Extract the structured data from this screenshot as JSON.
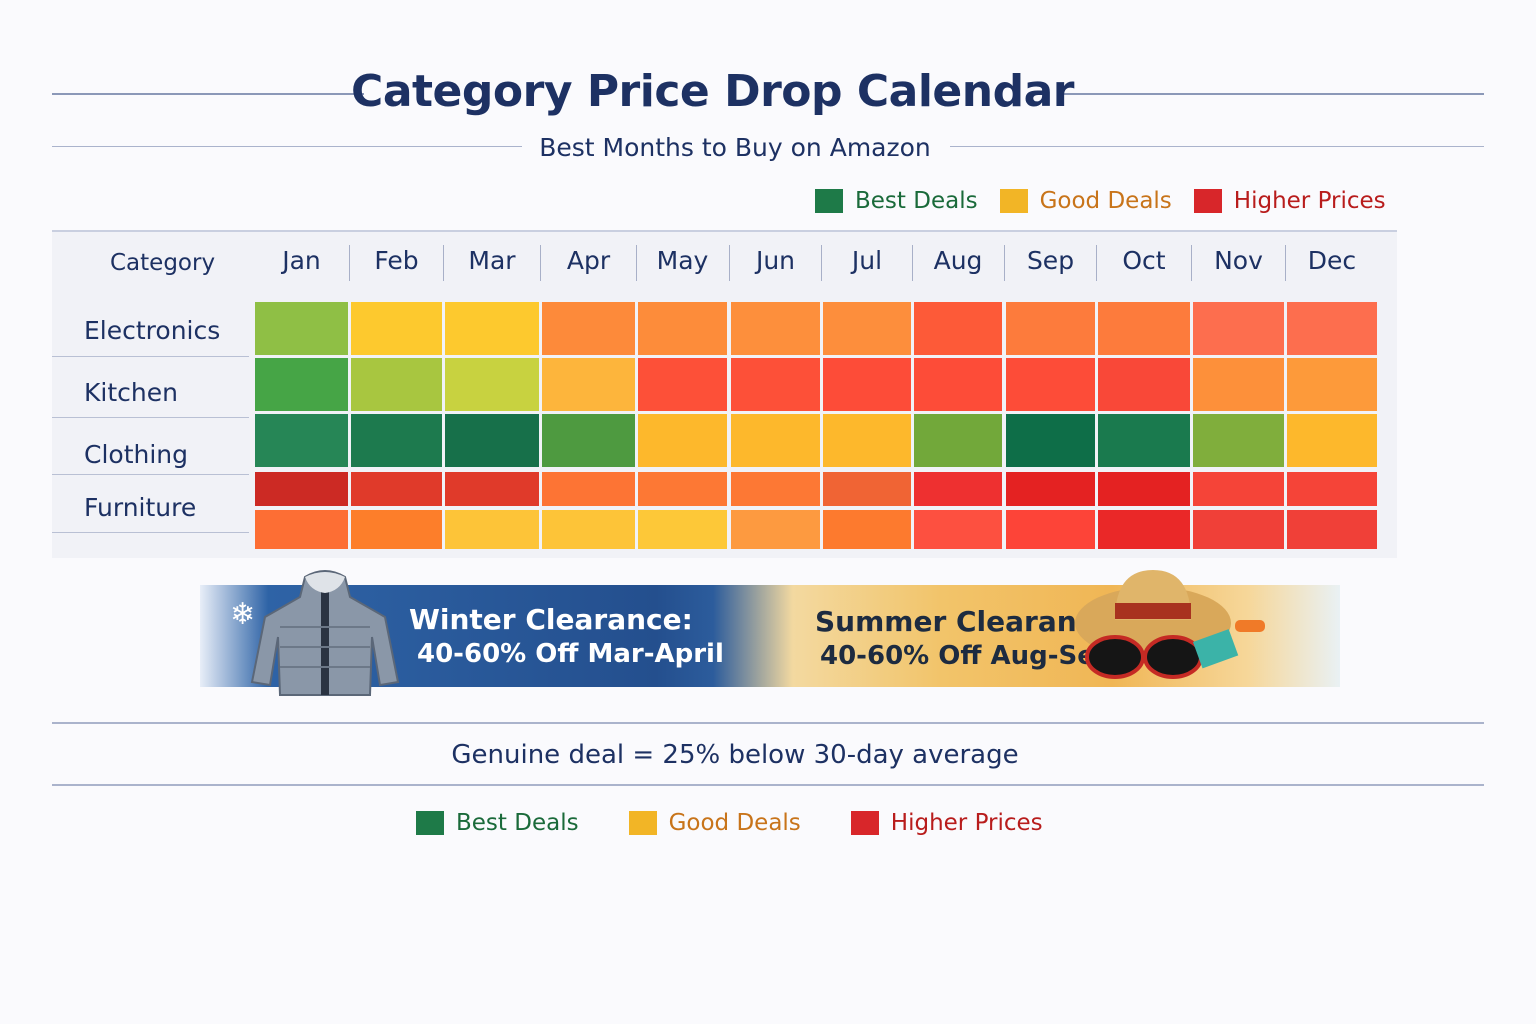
{
  "chart_data": {
    "type": "heatmap",
    "title": "Category Price Drop Calendar",
    "subtitle": "Best Months to Buy on Amazon",
    "row_header": "Category",
    "columns": [
      "Jan",
      "Feb",
      "Mar",
      "Apr",
      "May",
      "Jun",
      "Jul",
      "Aug",
      "Sep",
      "Oct",
      "Nov",
      "Dec"
    ],
    "rows": [
      "Electronics",
      "Kitchen",
      "Clothing",
      "Furniture",
      ""
    ],
    "legend": [
      {
        "label": "Best Deals",
        "color": "#1e7a48"
      },
      {
        "label": "Good Deals",
        "color": "#f2b526"
      },
      {
        "label": "Higher Prices",
        "color": "#d8262a"
      }
    ],
    "legend_placement": "top-right",
    "cell_colors": [
      [
        "#8fbf45",
        "#fdc92e",
        "#fdc92e",
        "#fd8a3a",
        "#fd8c3a",
        "#fd8f3c",
        "#fd8e3c",
        "#fd5a38",
        "#fd7b3c",
        "#fd7b3c",
        "#fd6e4e",
        "#fd6e4e"
      ],
      [
        "#46a546",
        "#a8c640",
        "#c8d240",
        "#fdb53c",
        "#fd5038",
        "#fd5038",
        "#fd4c38",
        "#fd4c38",
        "#fd4c38",
        "#f94838",
        "#fd903a",
        "#fd9a3a"
      ],
      [
        "#268656",
        "#1d7a4e",
        "#17704a",
        "#4e9a40",
        "#fdb82c",
        "#fdb82c",
        "#fdb82c",
        "#72a83a",
        "#0e6e48",
        "#1a7a4e",
        "#80ae3c",
        "#fdb82c"
      ],
      [
        "#cc2a24",
        "#e03a2a",
        "#e03a2a",
        "#fd7434",
        "#fd7834",
        "#fd7834",
        "#f06434",
        "#ee3030",
        "#e42222",
        "#e42222",
        "#f54438",
        "#f54438"
      ],
      [
        "#fd6e34",
        "#fd7e2a",
        "#fdc438",
        "#fdc438",
        "#fdc838",
        "#fd9a40",
        "#fd7a2e",
        "#fd5040",
        "#fd4438",
        "#ea2828",
        "#f04038",
        "#f04038"
      ]
    ]
  },
  "banner": {
    "winter_title": "Winter Clearance:",
    "winter_offer": "40-60% Off Mar-April",
    "summer_title": "Summer Clearance:",
    "summer_offer": "40-60% Off Aug-Sept"
  },
  "footer": {
    "note": "Genuine deal = 25% below 30-day average"
  }
}
